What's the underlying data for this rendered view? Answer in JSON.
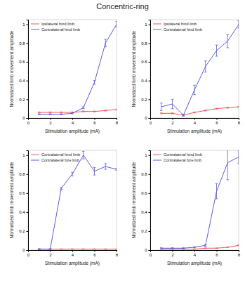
{
  "title": "Concentric-ring",
  "chart_data": [
    {
      "type": "line",
      "x_label": "Stimulation amplitude (mA)",
      "y_label": "Normalized limb movement amplitude",
      "x": [
        1,
        2,
        3,
        4,
        5,
        6,
        7,
        8
      ],
      "xlim": [
        0,
        8
      ],
      "xticks": [
        0,
        2,
        4,
        6,
        8
      ],
      "ylim": [
        0,
        1.05
      ],
      "yticks": [
        0,
        0.2,
        0.4,
        0.6,
        0.8,
        1
      ],
      "grid": false,
      "legend": "upper left",
      "series": [
        {
          "name": "Ipsilateral hind limb",
          "color": "#f0555a",
          "values": [
            0.06,
            0.06,
            0.06,
            0.06,
            0.07,
            0.07,
            0.08,
            0.09
          ],
          "errors": [
            0.005,
            0.005,
            0.005,
            0.005,
            0.005,
            0.005,
            0.005,
            0.005
          ]
        },
        {
          "name": "Contralateral hind limb",
          "color": "#5a5ae6",
          "values": [
            0.04,
            0.04,
            0.04,
            0.05,
            0.11,
            0.38,
            0.8,
            1.0
          ],
          "errors": [
            0.005,
            0.005,
            0.005,
            0.005,
            0.01,
            0.02,
            0.04,
            0.03
          ]
        }
      ]
    },
    {
      "type": "line",
      "x_label": "Stimulation amplitude (mA)",
      "y_label": "Normalized limb movement amplitude",
      "x": [
        1,
        2,
        3,
        4,
        5,
        6,
        7,
        8
      ],
      "xlim": [
        0,
        8
      ],
      "xticks": [
        0,
        2,
        4,
        6,
        8
      ],
      "ylim": [
        0,
        1.05
      ],
      "yticks": [
        0,
        0.2,
        0.4,
        0.6,
        0.8,
        1
      ],
      "grid": false,
      "legend": "upper left",
      "series": [
        {
          "name": "Ipsilateral hind limb",
          "color": "#f0555a",
          "values": [
            0.05,
            0.05,
            0.03,
            0.06,
            0.08,
            0.1,
            0.11,
            0.12
          ],
          "errors": [
            0.005,
            0.005,
            0.005,
            0.005,
            0.005,
            0.005,
            0.005,
            0.005
          ]
        },
        {
          "name": "Contralateral hind limb",
          "color": "#5a5ae6",
          "values": [
            0.12,
            0.15,
            0.03,
            0.3,
            0.55,
            0.72,
            0.82,
            1.0
          ],
          "errors": [
            0.04,
            0.05,
            0.01,
            0.05,
            0.06,
            0.06,
            0.07,
            0.04
          ]
        }
      ]
    },
    {
      "type": "line",
      "x_label": "Stimulation amplitude (mA)",
      "y_label": "Normalized limb movement amplitude",
      "x": [
        1,
        2,
        3,
        4,
        5,
        6,
        7,
        8
      ],
      "xlim": [
        0,
        8
      ],
      "xticks": [
        0,
        2,
        4,
        6,
        8
      ],
      "ylim": [
        0,
        1.05
      ],
      "yticks": [
        0,
        0.2,
        0.4,
        0.6,
        0.8,
        1
      ],
      "grid": false,
      "legend": "upper left",
      "series": [
        {
          "name": "Contralateral hind limb",
          "color": "#f0555a",
          "values": [
            0.01,
            0.01,
            0.01,
            0.01,
            0.01,
            0.01,
            0.01,
            0.01
          ],
          "errors": [
            0.003,
            0.003,
            0.003,
            0.003,
            0.003,
            0.003,
            0.003,
            0.003
          ]
        },
        {
          "name": "Contralateral fore limb",
          "color": "#5a5ae6",
          "values": [
            0.01,
            0.01,
            0.65,
            0.8,
            1.0,
            0.83,
            0.88,
            0.85
          ],
          "errors": [
            0.005,
            0.005,
            0.01,
            0.02,
            0.04,
            0.04,
            0.03,
            0.01
          ]
        }
      ]
    },
    {
      "type": "line",
      "x_label": "Stimulation amplitude (mA)",
      "y_label": "Normalized limb movement amplitude",
      "x": [
        1,
        2,
        3,
        4,
        5,
        6,
        7,
        8
      ],
      "xlim": [
        0,
        8
      ],
      "xticks": [
        0,
        2,
        4,
        6,
        8
      ],
      "ylim": [
        0,
        1.05
      ],
      "yticks": [
        0,
        0.2,
        0.4,
        0.6,
        0.8,
        1
      ],
      "grid": false,
      "legend": "upper left",
      "series": [
        {
          "name": "Contralateral hind limb",
          "color": "#f0555a",
          "values": [
            0.01,
            0.01,
            0.01,
            0.01,
            0.02,
            0.02,
            0.03,
            0.05
          ],
          "errors": [
            0.003,
            0.003,
            0.003,
            0.003,
            0.003,
            0.003,
            0.003,
            0.005
          ]
        },
        {
          "name": "Contralateral fore limb",
          "color": "#5a5ae6",
          "values": [
            0.02,
            0.02,
            0.02,
            0.03,
            0.05,
            0.62,
            0.92,
            0.98
          ],
          "errors": [
            0.005,
            0.005,
            0.005,
            0.005,
            0.01,
            0.08,
            0.18,
            0.07
          ]
        }
      ]
    }
  ]
}
